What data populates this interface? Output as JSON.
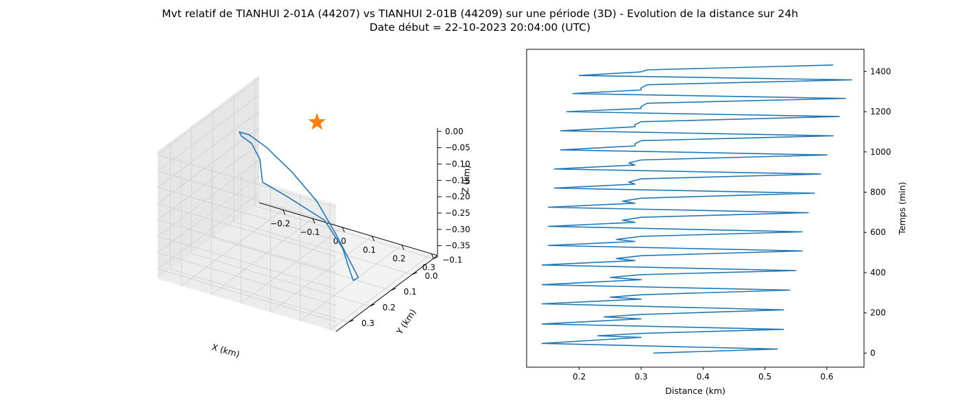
{
  "title": {
    "line1": "Mvt relatif de TIANHUI 2-01A (44207) vs TIANHUI 2-01B (44209) sur une période (3D) - Evolution de la distance sur 24h",
    "line2": "Date début = 22-10-2023 20:04:00 (UTC)"
  },
  "colors": {
    "series": "#1f77b4",
    "marker": "#ff7f0e",
    "pane": "#f2f2f2",
    "grid": "#cfcfcf"
  },
  "chart_data": [
    {
      "type": "line",
      "projection": "3d",
      "xlabel": "X (km)",
      "ylabel": "Y (km)",
      "zlabel": "Z (km)",
      "xticks": [
        "−0.2",
        "−0.1",
        "0.0",
        "0.1",
        "0.2",
        "0.3"
      ],
      "yticks": [
        "−0.1",
        "0.0",
        "0.1",
        "0.2",
        "0.3"
      ],
      "zticks": [
        "0.00",
        "−0.05",
        "−0.10",
        "−0.15",
        "−0.20",
        "−0.25",
        "−0.30",
        "−0.35"
      ],
      "series": [
        {
          "marker": "star",
          "points": [
            [
              0.03,
              0.3,
              -0.03
            ],
            [
              0.13,
              0.33,
              -0.03
            ],
            [
              0.26,
              0.33,
              -0.07
            ],
            [
              0.3,
              0.3,
              -0.16
            ],
            [
              0.29,
              0.25,
              -0.26
            ],
            [
              0.25,
              0.18,
              -0.33
            ],
            [
              0.21,
              0.1,
              -0.37
            ],
            [
              0.14,
              0.04,
              -0.37
            ],
            [
              0.05,
              -0.02,
              -0.34
            ],
            [
              -0.05,
              -0.07,
              -0.29
            ],
            [
              -0.14,
              -0.08,
              -0.23
            ],
            [
              -0.22,
              -0.07,
              -0.17
            ],
            [
              -0.25,
              -0.03,
              -0.12
            ],
            [
              -0.24,
              0.03,
              -0.08
            ],
            [
              -0.19,
              0.09,
              -0.05
            ],
            [
              -0.12,
              0.14,
              -0.03
            ],
            [
              -0.05,
              0.2,
              -0.03
            ],
            [
              0.03,
              0.3,
              -0.03
            ]
          ]
        }
      ]
    },
    {
      "type": "line",
      "xlabel": "Distance (km)",
      "ylabel": "Temps (min)",
      "xlim": [
        0.115,
        0.66
      ],
      "ylim": [
        -70,
        1510
      ],
      "xticks": [
        0.2,
        0.3,
        0.4,
        0.5,
        0.6
      ],
      "yticks": [
        0,
        200,
        400,
        600,
        800,
        1000,
        1200,
        1400
      ],
      "series": [
        {
          "x": [
            0.32,
            0.52,
            0.14,
            0.3,
            0.23,
            0.3,
            0.53,
            0.14,
            0.3,
            0.24,
            0.3,
            0.53,
            0.14,
            0.3,
            0.25,
            0.3,
            0.54,
            0.14,
            0.3,
            0.25,
            0.3,
            0.55,
            0.14,
            0.29,
            0.26,
            0.3,
            0.56,
            0.15,
            0.29,
            0.26,
            0.3,
            0.56,
            0.15,
            0.29,
            0.27,
            0.3,
            0.57,
            0.15,
            0.29,
            0.27,
            0.3,
            0.58,
            0.16,
            0.29,
            0.28,
            0.3,
            0.59,
            0.16,
            0.29,
            0.28,
            0.3,
            0.6,
            0.17,
            0.29,
            0.29,
            0.3,
            0.61,
            0.17,
            0.29,
            0.29,
            0.3,
            0.62,
            0.18,
            0.3,
            0.3,
            0.31,
            0.63,
            0.19,
            0.3,
            0.3,
            0.31,
            0.64,
            0.2,
            0.3,
            0.31,
            0.61
          ],
          "y": [
            0,
            20,
            48,
            78,
            86,
            98,
            118,
            145,
            170,
            180,
            192,
            215,
            245,
            268,
            278,
            290,
            313,
            340,
            365,
            376,
            390,
            410,
            438,
            460,
            470,
            484,
            508,
            535,
            555,
            565,
            580,
            603,
            630,
            650,
            660,
            675,
            698,
            725,
            745,
            755,
            770,
            795,
            820,
            840,
            850,
            866,
            890,
            915,
            935,
            945,
            960,
            985,
            1010,
            1030,
            1040,
            1056,
            1080,
            1105,
            1125,
            1135,
            1150,
            1176,
            1200,
            1216,
            1226,
            1242,
            1266,
            1290,
            1308,
            1318,
            1334,
            1358,
            1380,
            1398,
            1408,
            1432
          ]
        }
      ]
    }
  ]
}
